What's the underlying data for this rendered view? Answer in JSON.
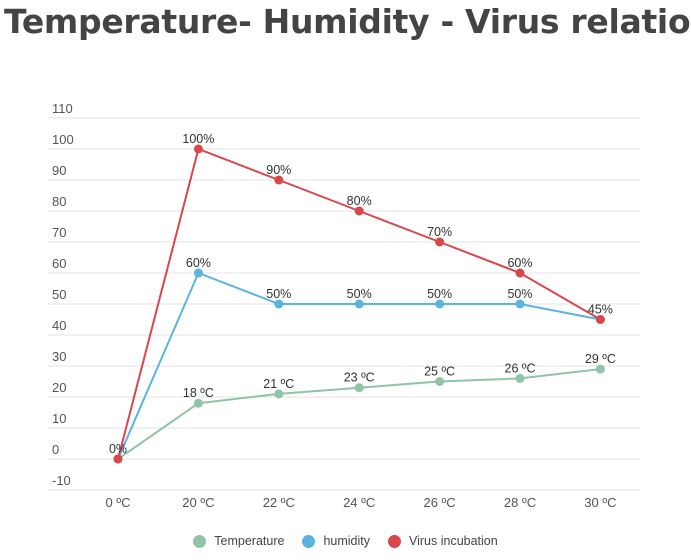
{
  "title": "Temperature- Humidity - Virus relation",
  "chart_data": {
    "type": "line",
    "categories": [
      "0 ºC",
      "20 ºC",
      "22 ºC",
      "24 ºC",
      "26 ºC",
      "28 ºC",
      "30 ºC"
    ],
    "ylim": [
      -10,
      110
    ],
    "yticks": [
      -10,
      0,
      10,
      20,
      30,
      40,
      50,
      60,
      70,
      80,
      90,
      100,
      110
    ],
    "grid": true,
    "legend_position": "bottom",
    "series": [
      {
        "name": "Temperature",
        "color": "#8fc4a6",
        "values": [
          0,
          18,
          21,
          23,
          25,
          26,
          29
        ],
        "labels": [
          "",
          "18 ºC",
          "21 ºC",
          "23 ºC",
          "25 ºC",
          "26 ºC",
          "29 ºC"
        ]
      },
      {
        "name": "humidity",
        "color": "#5ab4e0",
        "values": [
          0,
          60,
          50,
          50,
          50,
          50,
          45
        ],
        "labels": [
          "",
          "60%",
          "50%",
          "50%",
          "50%",
          "50%",
          ""
        ]
      },
      {
        "name": "Virus incubation",
        "color": "#d9464b",
        "values": [
          0,
          100,
          90,
          80,
          70,
          60,
          45
        ],
        "labels": [
          "0%",
          "100%",
          "90%",
          "80%",
          "70%",
          "60%",
          "45%"
        ]
      }
    ]
  }
}
